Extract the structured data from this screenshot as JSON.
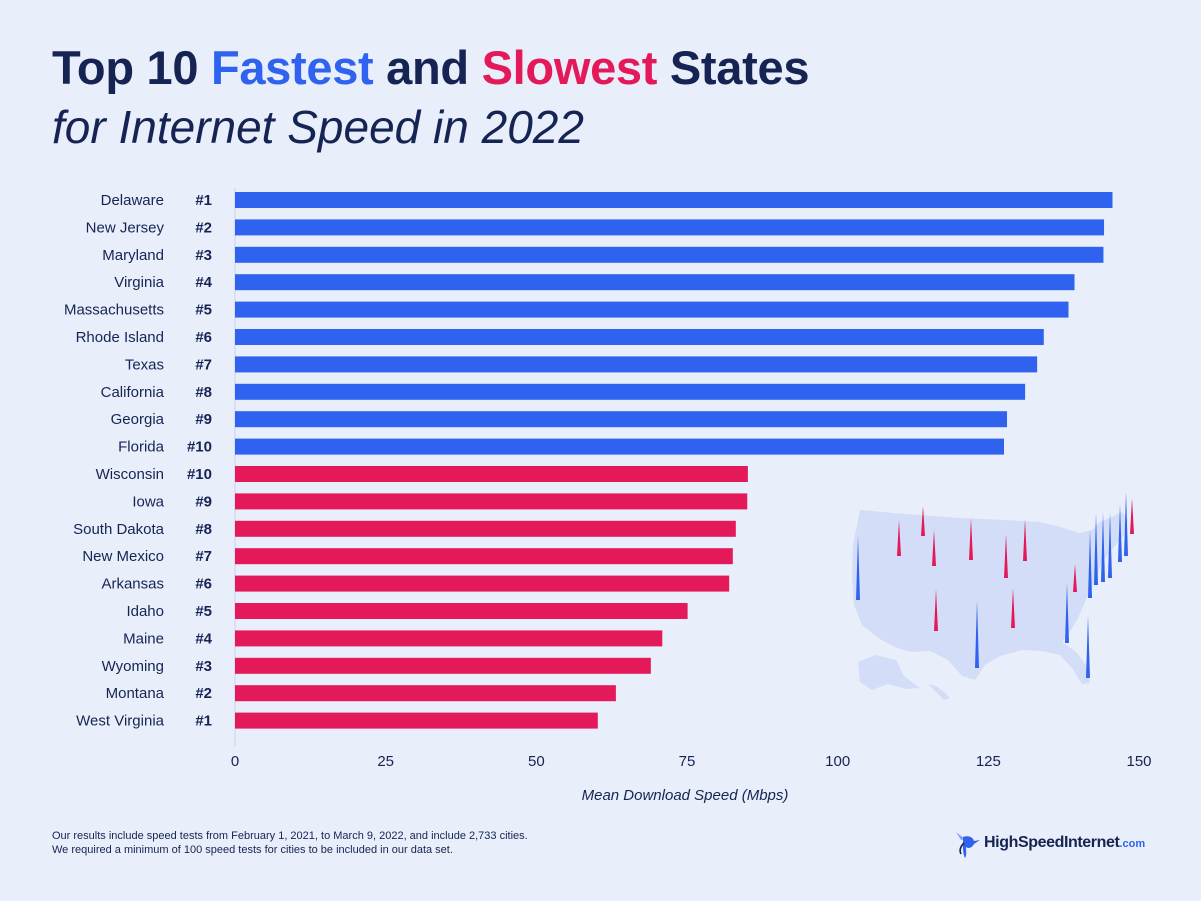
{
  "title": {
    "part1": "Top 10 ",
    "fastest": "Fastest",
    "part2": " and ",
    "slowest": "Slowest",
    "part3": " States",
    "subtitle": "for Internet Speed in 2022"
  },
  "colors": {
    "fast": "#2f62ee",
    "slow": "#e3195a",
    "text": "#162453",
    "background": "#e9eefb",
    "map": "#d4ddf7"
  },
  "chart_data": {
    "type": "bar",
    "orientation": "horizontal",
    "xlabel": "Mean Download Speed (Mbps)",
    "xlim": [
      0,
      150
    ],
    "xticks": [
      0,
      25,
      50,
      75,
      100,
      125,
      150
    ],
    "series": [
      {
        "name": "Fastest",
        "color": "#2f62ee",
        "categories": [
          "Delaware",
          "New Jersey",
          "Maryland",
          "Virginia",
          "Massachusetts",
          "Rhode Island",
          "Texas",
          "California",
          "Georgia",
          "Florida"
        ],
        "ranks": [
          "#1",
          "#2",
          "#3",
          "#4",
          "#5",
          "#6",
          "#7",
          "#8",
          "#9",
          "#10"
        ],
        "values": [
          145.6,
          144.2,
          144.1,
          139.3,
          138.3,
          134.2,
          133.1,
          131.1,
          128.1,
          127.6
        ]
      },
      {
        "name": "Slowest",
        "color": "#e3195a",
        "categories": [
          "Wisconsin",
          "Iowa",
          "South Dakota",
          "New Mexico",
          "Arkansas",
          "Idaho",
          "Maine",
          "Wyoming",
          "Montana",
          "West Virginia"
        ],
        "ranks": [
          "#10",
          "#9",
          "#8",
          "#7",
          "#6",
          "#5",
          "#4",
          "#3",
          "#2",
          "#1"
        ],
        "values": [
          85.1,
          85.0,
          83.1,
          82.6,
          82.0,
          75.1,
          70.9,
          69.0,
          63.2,
          60.2
        ]
      }
    ]
  },
  "footnote": {
    "line1": "Our results include speed tests from February 1, 2021, to March 9, 2022, and include 2,733 cities.",
    "line2": "We required a minimum of 100 speed tests for cities to be included in our data set."
  },
  "logo": {
    "name": "HighSpeedInternet",
    "tld": ".com"
  }
}
